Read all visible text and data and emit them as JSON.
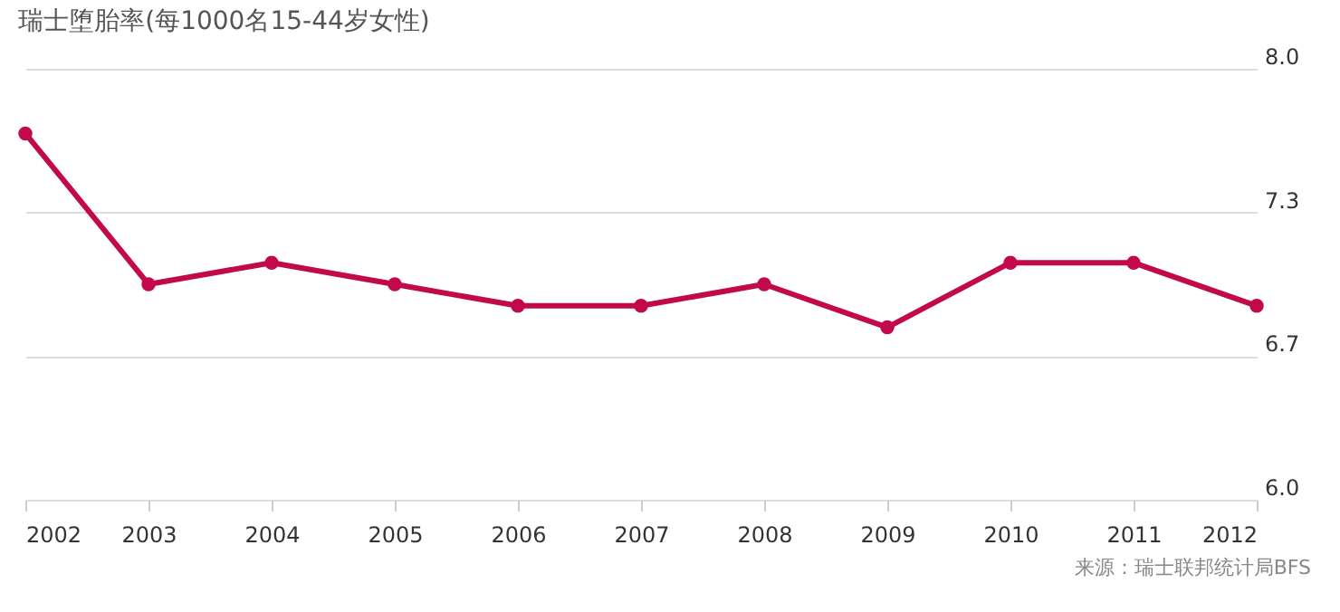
{
  "chart_data": {
    "type": "line",
    "title": "瑞士堕胎率(每1000名15-44岁女性)",
    "categories": [
      "2002",
      "2003",
      "2004",
      "2005",
      "2006",
      "2007",
      "2008",
      "2009",
      "2010",
      "2011",
      "2012"
    ],
    "series": [
      {
        "color": "#c2094b",
        "values": [
          7.7,
          7.0,
          7.1,
          7.0,
          6.9,
          6.9,
          7.0,
          6.8,
          7.1,
          7.1,
          6.9
        ]
      }
    ],
    "ylim": [
      6.0,
      8.0
    ],
    "yticks": [
      {
        "value": 6,
        "label": "6.0"
      },
      {
        "value": 6.6667,
        "label": "6.7"
      },
      {
        "value": 7.3333,
        "label": "7.3"
      },
      {
        "value": 8,
        "label": "8.0"
      }
    ],
    "grid": "y",
    "marker": "circle",
    "line_style": "solid",
    "legend": false,
    "annotations": [
      "来源：瑞士联邦统计局BFS"
    ]
  }
}
